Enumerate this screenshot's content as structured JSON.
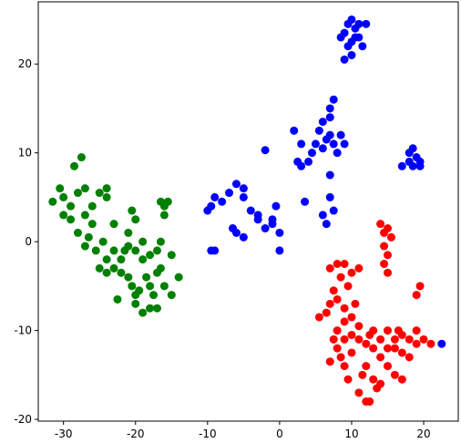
{
  "chart_data": {
    "type": "scatter",
    "xlim": [
      -33.5,
      24.8
    ],
    "ylim": [
      -20.2,
      27
    ],
    "xticks": [
      -30,
      -20,
      -10,
      0,
      10,
      20
    ],
    "yticks": [
      -20,
      -10,
      0,
      10,
      20
    ],
    "series": [
      {
        "color": "#008000",
        "x": [
          -31.5,
          -30.5,
          -30,
          -29,
          -29,
          -28,
          -28.5,
          -27.5,
          -27,
          -27,
          -26,
          -26,
          -25,
          -24,
          -24,
          -26.5,
          -25.5,
          -24.5,
          -24,
          -23,
          -23,
          -22,
          -22,
          -21.5,
          -21,
          -20.5,
          -20,
          -20,
          -19,
          -19,
          -18.5,
          -18,
          -17.5,
          -17,
          -18,
          -19,
          -20,
          -20.5,
          -21,
          -22.5,
          -19.5,
          -16,
          -16.5,
          -17,
          -16.5,
          -15,
          -14,
          -15,
          -16,
          -16.5,
          -15.5,
          -16,
          -25,
          -27,
          -23,
          -21,
          -18,
          -17,
          -20,
          -24,
          -28,
          -30
        ],
        "y": [
          4.5,
          6,
          5,
          4,
          2.5,
          5.5,
          8.5,
          9.5,
          6,
          3,
          4,
          2,
          5.5,
          6,
          5,
          0.5,
          -1,
          0,
          -2,
          -1,
          -3,
          -3.5,
          -2,
          -1,
          1,
          3.5,
          2.5,
          -1,
          0,
          -2,
          -4,
          -5,
          -6,
          -7.5,
          -7.5,
          -8,
          -7,
          -5,
          -4,
          -6.5,
          -5.5,
          -5,
          -3,
          -1,
          0,
          -1.5,
          -4,
          -6,
          4,
          4.5,
          4.5,
          3,
          -3,
          -0.5,
          2,
          -0.5,
          -1.5,
          -3.5,
          -6,
          -3.5,
          1,
          3
        ]
      },
      {
        "color": "#0000ff",
        "x": [
          9,
          9.5,
          10,
          10.5,
          11,
          10,
          9.5,
          11.5,
          12,
          8.5,
          10,
          9,
          11,
          10.5,
          17,
          18,
          18.5,
          19,
          19.5,
          18.5,
          19.5,
          18,
          2,
          3,
          4,
          4.5,
          5,
          5.5,
          6,
          6.5,
          7,
          7.5,
          8,
          7,
          7.5,
          6,
          9,
          8.5,
          7,
          -2,
          3,
          2.5,
          7,
          7,
          7.5,
          6,
          6.5,
          3.5,
          -10,
          -9.5,
          -9,
          -8,
          -7,
          -6,
          -5,
          -5,
          -6.5,
          -6,
          -5,
          -4,
          -3,
          -2,
          -1,
          0,
          -0.5,
          -9,
          0,
          -9.5,
          -3,
          -1,
          22.5
        ],
        "y": [
          23.5,
          24.5,
          25,
          24,
          23,
          22.5,
          22,
          22,
          24.5,
          23,
          21,
          20.5,
          24.5,
          23,
          8.5,
          9,
          10.5,
          9.5,
          9,
          8.5,
          8.5,
          10,
          12.5,
          11,
          9,
          10,
          11,
          12.5,
          10.5,
          11.5,
          12,
          11,
          10,
          15,
          16,
          13.5,
          11,
          12,
          14,
          10.3,
          8.5,
          9,
          7.5,
          5,
          3.5,
          3,
          2,
          4.5,
          3.5,
          4,
          5,
          4.5,
          5.5,
          6.5,
          6,
          5,
          1.5,
          1,
          0.5,
          3.5,
          2.5,
          1.5,
          2,
          1,
          4,
          -1,
          -1,
          -1,
          3,
          2.5,
          -11.5
        ]
      },
      {
        "color": "#ff0000",
        "x": [
          14,
          14.5,
          15,
          15.5,
          14.5,
          15,
          14.5,
          15,
          19.5,
          19,
          7,
          8,
          9,
          10,
          11,
          8.5,
          9.5,
          7.5,
          8,
          7,
          6.5,
          5.5,
          9,
          10.5,
          10,
          9,
          8,
          10,
          11,
          7.5,
          8,
          8.5,
          9,
          10,
          11,
          12,
          12.5,
          13,
          14,
          15,
          16,
          17,
          18,
          19,
          20,
          21,
          16,
          17,
          18,
          14,
          15,
          12,
          11.5,
          13,
          14,
          16,
          17,
          11,
          12,
          12.5,
          13.5,
          9.5,
          15,
          16.5,
          19,
          13,
          7,
          9
        ],
        "y": [
          2,
          1,
          1.5,
          0.5,
          -0.5,
          -1.5,
          -2.5,
          -3.5,
          -5,
          -6,
          -3,
          -2.5,
          -2.5,
          -3.5,
          -3,
          -4,
          -5,
          -5.5,
          -6.5,
          -7,
          -8,
          -8.5,
          -7.5,
          -7,
          -8.5,
          -9,
          -10,
          -10.5,
          -9.5,
          -11,
          -12,
          -13,
          -14,
          -12.5,
          -11,
          -11.5,
          -10.5,
          -12,
          -11,
          -10,
          -11,
          -10.5,
          -11,
          -10,
          -11,
          -11.5,
          -12,
          -12.5,
          -13,
          -13,
          -14,
          -14,
          -15,
          -15.5,
          -16,
          -15,
          -15.5,
          -17,
          -18,
          -18,
          -16.5,
          -15.5,
          -12,
          -10,
          -11.5,
          -10,
          -13.5,
          -11
        ]
      }
    ]
  }
}
